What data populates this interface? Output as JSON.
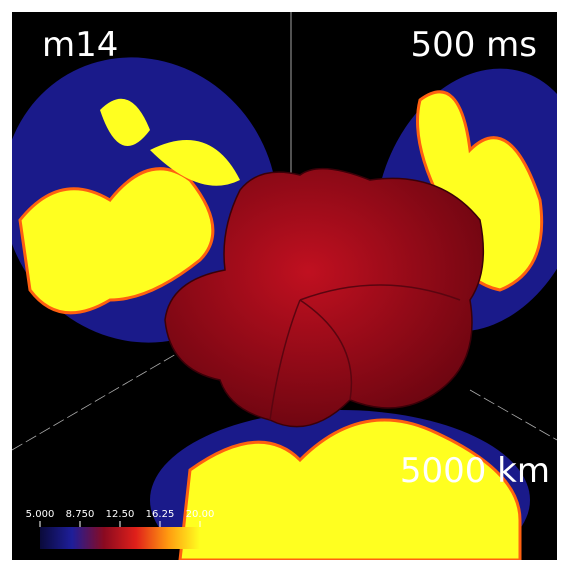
{
  "labels": {
    "model": "m14",
    "time": "500 ms",
    "scale": "5000 km"
  },
  "colorbar": {
    "range": [
      5,
      20
    ],
    "ticks": [
      {
        "value": 5,
        "label": "5.000"
      },
      {
        "value": 8.75,
        "label": "8.750"
      },
      {
        "value": 12.5,
        "label": "12.50"
      },
      {
        "value": 16.25,
        "label": "16.25"
      },
      {
        "value": 20,
        "label": "20.00"
      }
    ],
    "colors": [
      "#0a0a3a",
      "#1e1e9a",
      "#8a0a20",
      "#e0201a",
      "#ff9a10",
      "#ffff20"
    ]
  }
}
